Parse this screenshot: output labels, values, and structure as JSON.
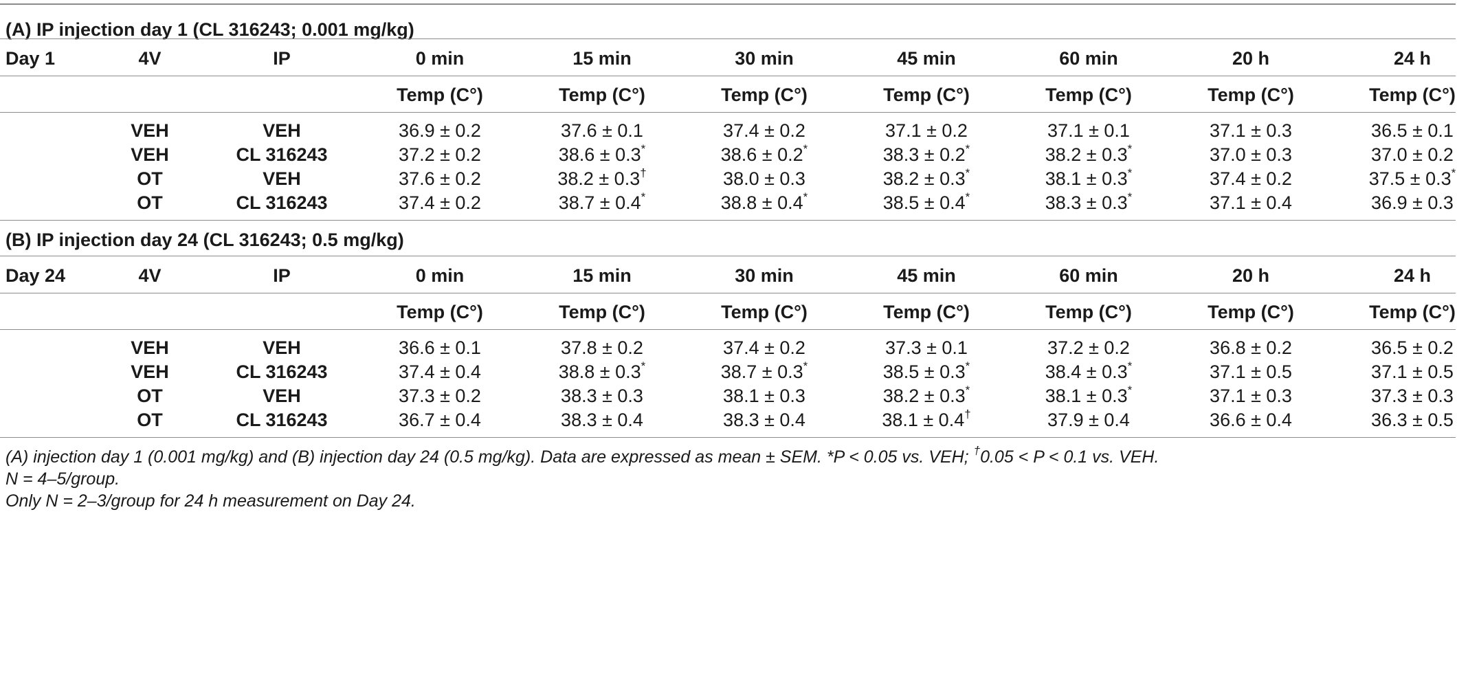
{
  "table": {
    "columns": [
      "4V",
      "IP",
      "0 min",
      "15 min",
      "30 min",
      "45 min",
      "60 min",
      "20 h",
      "24 h"
    ],
    "temp_label": "Temp (C°)",
    "sections": [
      {
        "title": "(A) IP injection day 1 (CL 316243; 0.001 mg/kg)",
        "day_label": "Day 1",
        "rows": [
          {
            "v4": "VEH",
            "ip": "VEH",
            "values": [
              "36.9 ± 0.2",
              "37.6 ± 0.1",
              "37.4 ± 0.2",
              "37.1 ± 0.2",
              "37.1 ± 0.1",
              "37.1 ± 0.3",
              "36.5 ± 0.1"
            ],
            "marks": [
              "",
              "",
              "",
              "",
              "",
              "",
              ""
            ]
          },
          {
            "v4": "VEH",
            "ip": "CL 316243",
            "values": [
              "37.2 ± 0.2",
              "38.6 ± 0.3",
              "38.6 ± 0.2",
              "38.3 ± 0.2",
              "38.2 ± 0.3",
              "37.0 ± 0.3",
              "37.0 ± 0.2"
            ],
            "marks": [
              "",
              "*",
              "*",
              "*",
              "*",
              "",
              ""
            ]
          },
          {
            "v4": "OT",
            "ip": "VEH",
            "values": [
              "37.6 ± 0.2",
              "38.2 ± 0.3",
              "38.0 ± 0.3",
              "38.2 ± 0.3",
              "38.1 ± 0.3",
              "37.4 ± 0.2",
              "37.5 ± 0.3"
            ],
            "marks": [
              "",
              "†",
              "",
              "*",
              "*",
              "",
              "*"
            ]
          },
          {
            "v4": "OT",
            "ip": "CL 316243",
            "values": [
              "37.4 ± 0.2",
              "38.7 ± 0.4",
              "38.8 ± 0.4",
              "38.5 ± 0.4",
              "38.3 ± 0.3",
              "37.1 ± 0.4",
              "36.9 ± 0.3"
            ],
            "marks": [
              "",
              "*",
              "*",
              "*",
              "*",
              "",
              ""
            ]
          }
        ]
      },
      {
        "title": "(B) IP injection day 24 (CL 316243; 0.5 mg/kg)",
        "day_label": "Day 24",
        "rows": [
          {
            "v4": "VEH",
            "ip": "VEH",
            "values": [
              "36.6 ± 0.1",
              "37.8 ± 0.2",
              "37.4 ± 0.2",
              "37.3 ± 0.1",
              "37.2 ± 0.2",
              "36.8 ± 0.2",
              "36.5 ± 0.2"
            ],
            "marks": [
              "",
              "",
              "",
              "",
              "",
              "",
              ""
            ]
          },
          {
            "v4": "VEH",
            "ip": "CL 316243",
            "values": [
              "37.4 ± 0.4",
              "38.8 ± 0.3",
              "38.7 ± 0.3",
              "38.5 ± 0.3",
              "38.4 ± 0.3",
              "37.1 ± 0.5",
              "37.1 ± 0.5"
            ],
            "marks": [
              "",
              "*",
              "*",
              "*",
              "*",
              "",
              ""
            ]
          },
          {
            "v4": "OT",
            "ip": "VEH",
            "values": [
              "37.3 ± 0.2",
              "38.3 ± 0.3",
              "38.1 ± 0.3",
              "38.2 ± 0.3",
              "38.1 ± 0.3",
              "37.1 ± 0.3",
              "37.3 ± 0.3"
            ],
            "marks": [
              "",
              "",
              "",
              "*",
              "*",
              "",
              ""
            ]
          },
          {
            "v4": "OT",
            "ip": "CL 316243",
            "values": [
              "36.7 ± 0.4",
              "38.3 ± 0.4",
              "38.3 ± 0.4",
              "38.1 ± 0.4",
              "37.9 ± 0.4",
              "36.6 ± 0.4",
              "36.3 ± 0.5"
            ],
            "marks": [
              "",
              "",
              "",
              "†",
              "",
              "",
              ""
            ]
          }
        ]
      }
    ]
  },
  "footnotes": {
    "line1_a": "(A) injection day 1 (0.001 mg/kg) and (B) injection day 24 (0.5 mg/kg). Data are expressed as mean ± SEM. *P < 0.05 vs. VEH; ",
    "line1_dagger": "†",
    "line1_b": "0.05 < P < 0.1 vs. VEH.",
    "line2": "N = 4–5/group.",
    "line3": "Only N = 2–3/group for 24 h measurement on Day 24."
  }
}
